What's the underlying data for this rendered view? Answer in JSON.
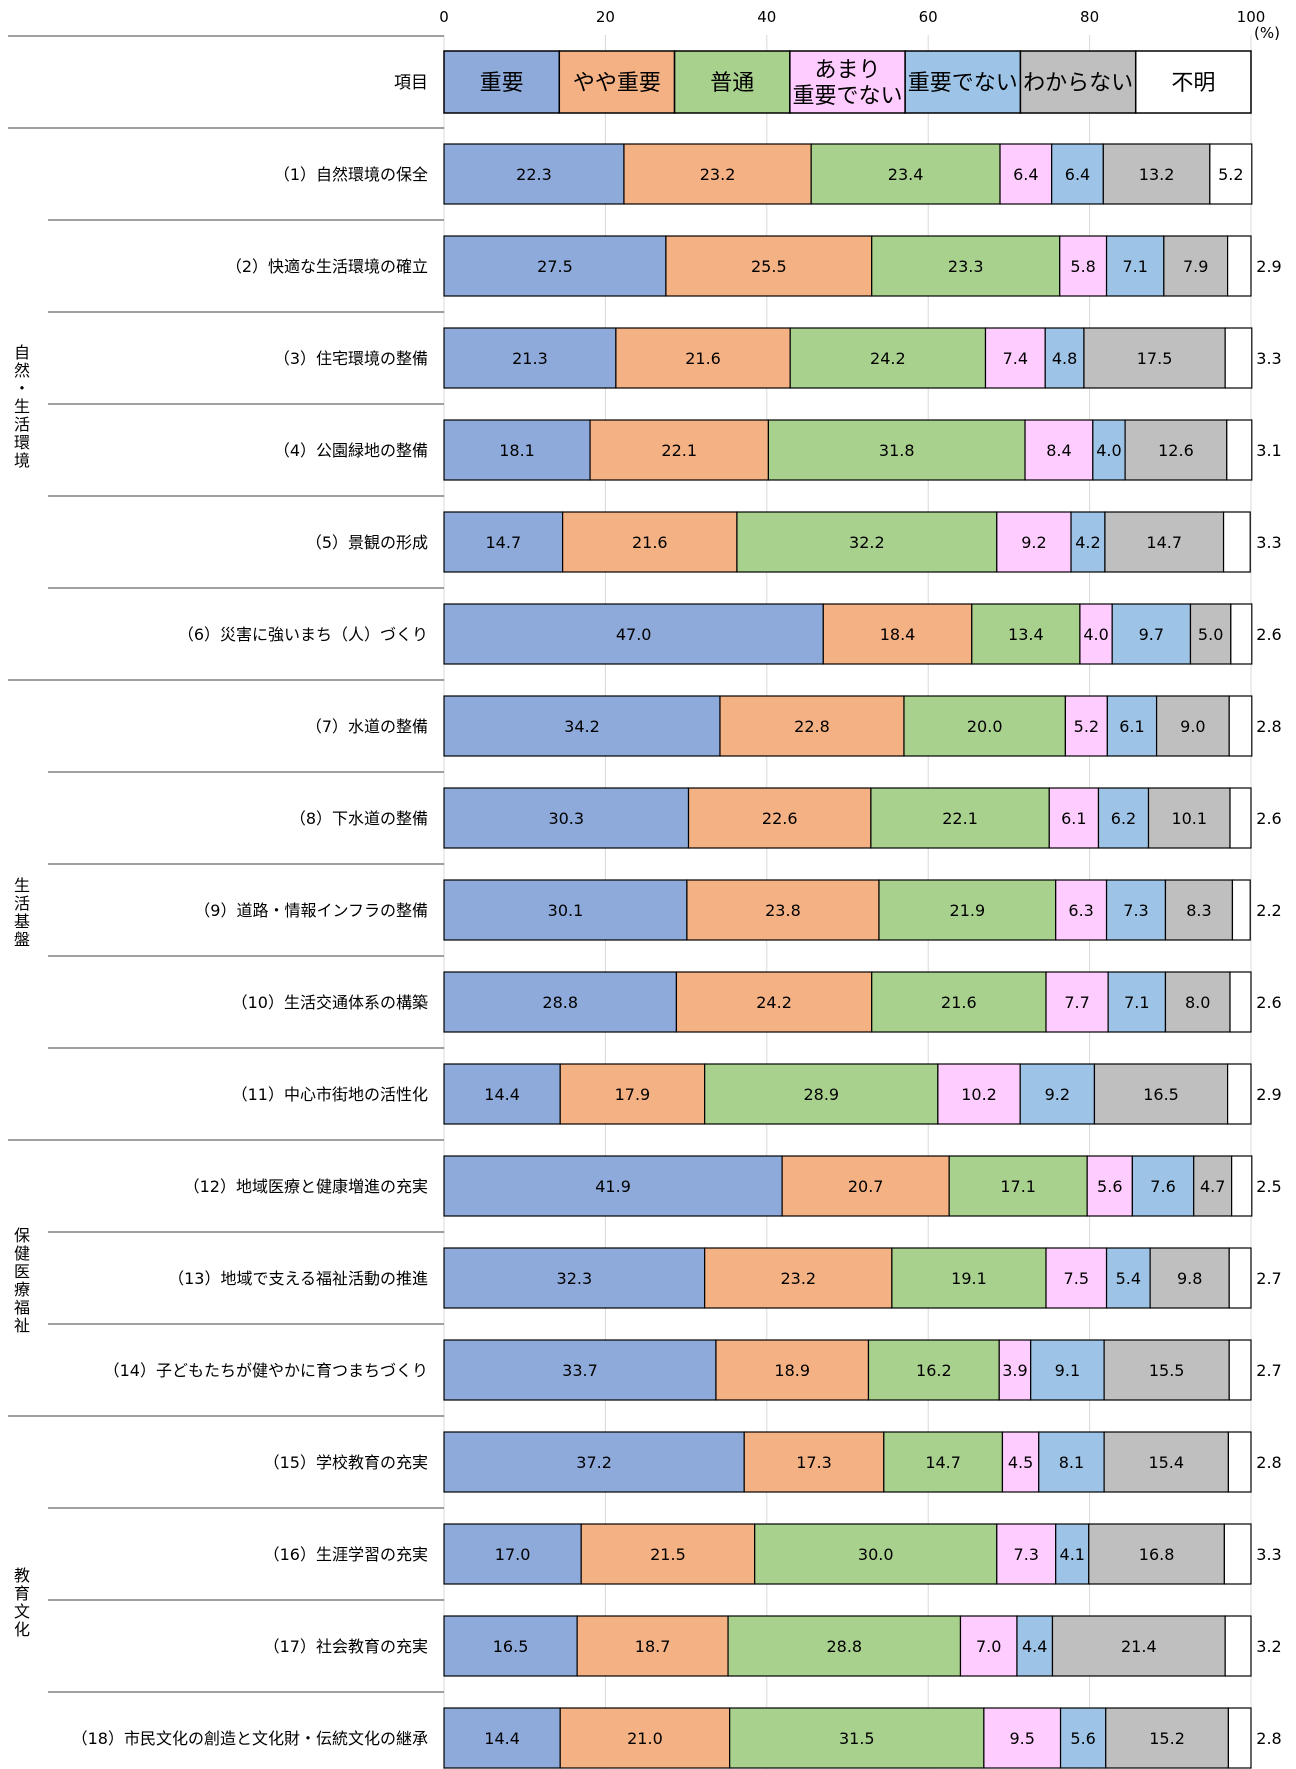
{
  "chart_data": {
    "type": "bar",
    "orientation": "horizontal",
    "stacked": true,
    "percent_unit": "(%)",
    "xlim": [
      0,
      100
    ],
    "xticks": [
      "0",
      "20",
      "40",
      "60",
      "80",
      "100"
    ],
    "header_label": "項目",
    "legend_position": "top",
    "categories": [
      "（1）自然環境の保全",
      "（2）快適な生活環境の確立",
      "（3）住宅環境の整備",
      "（4）公園緑地の整備",
      "（5）景観の形成",
      "（6）災害に強いまち（人）づくり",
      "（7）水道の整備",
      "（8）下水道の整備",
      "（9）道路・情報インフラの整備",
      "（10）生活交通体系の構築",
      "（11）中心市街地の活性化",
      "（12）地域医療と健康増進の充実",
      "（13）地域で支える福祉活動の推進",
      "（14）子どもたちが健やかに育つまちづくり",
      "（15）学校教育の充実",
      "（16）生涯学習の充実",
      "（17）社会教育の充実",
      "（18）市民文化の創造と文化財・伝統文化の継承"
    ],
    "groups": [
      {
        "label": "自然・生活環境",
        "start": 0,
        "end": 5
      },
      {
        "label": "生活基盤",
        "start": 6,
        "end": 10
      },
      {
        "label": "保健医療福祉",
        "start": 11,
        "end": 13
      },
      {
        "label": "教育文化",
        "start": 14,
        "end": 17
      }
    ],
    "series": [
      {
        "name": "重要",
        "color": "#8eaadb",
        "values": [
          "22.3",
          "27.5",
          "21.3",
          "18.1",
          "14.7",
          "47.0",
          "34.2",
          "30.3",
          "30.1",
          "28.8",
          "14.4",
          "41.9",
          "32.3",
          "33.7",
          "37.2",
          "17.0",
          "16.5",
          "14.4"
        ]
      },
      {
        "name": "やや重要",
        "color": "#f4b183",
        "values": [
          "23.2",
          "25.5",
          "21.6",
          "22.1",
          "21.6",
          "18.4",
          "22.8",
          "22.6",
          "23.8",
          "24.2",
          "17.9",
          "20.7",
          "23.2",
          "18.9",
          "17.3",
          "21.5",
          "18.7",
          "21.0"
        ]
      },
      {
        "name": "普通",
        "color": "#a9d18e",
        "values": [
          "23.4",
          "23.3",
          "24.2",
          "31.8",
          "32.2",
          "13.4",
          "20.0",
          "22.1",
          "21.9",
          "21.6",
          "28.9",
          "17.1",
          "19.1",
          "16.2",
          "14.7",
          "30.0",
          "28.8",
          "31.5"
        ]
      },
      {
        "name": "あまり重要でない",
        "name_lines": [
          "あまり",
          "重要でない"
        ],
        "color": "#ffccff",
        "values": [
          "6.4",
          "5.8",
          "7.4",
          "8.4",
          "9.2",
          "4.0",
          "5.2",
          "6.1",
          "6.3",
          "7.7",
          "10.2",
          "5.6",
          "7.5",
          "3.9",
          "4.5",
          "7.3",
          "7.0",
          "9.5"
        ]
      },
      {
        "name": "重要でない",
        "color": "#9dc3e6",
        "values": [
          "6.4",
          "7.1",
          "4.8",
          "4.0",
          "4.2",
          "9.7",
          "6.1",
          "6.2",
          "7.3",
          "7.1",
          "9.2",
          "7.6",
          "5.4",
          "9.1",
          "8.1",
          "4.1",
          "4.4",
          "5.6"
        ]
      },
      {
        "name": "わからない",
        "color": "#bfbfbf",
        "values": [
          "13.2",
          "7.9",
          "17.5",
          "12.6",
          "14.7",
          "5.0",
          "9.0",
          "10.1",
          "8.3",
          "8.0",
          "16.5",
          "4.7",
          "9.8",
          "15.5",
          "15.4",
          "16.8",
          "21.4",
          "15.2"
        ]
      },
      {
        "name": "不明",
        "color": "#ffffff",
        "values": [
          "5.2",
          "2.9",
          "3.3",
          "3.1",
          "3.3",
          "2.6",
          "2.8",
          "2.6",
          "2.2",
          "2.6",
          "2.9",
          "2.5",
          "2.7",
          "2.7",
          "2.8",
          "3.3",
          "3.2",
          "2.8"
        ]
      }
    ]
  }
}
